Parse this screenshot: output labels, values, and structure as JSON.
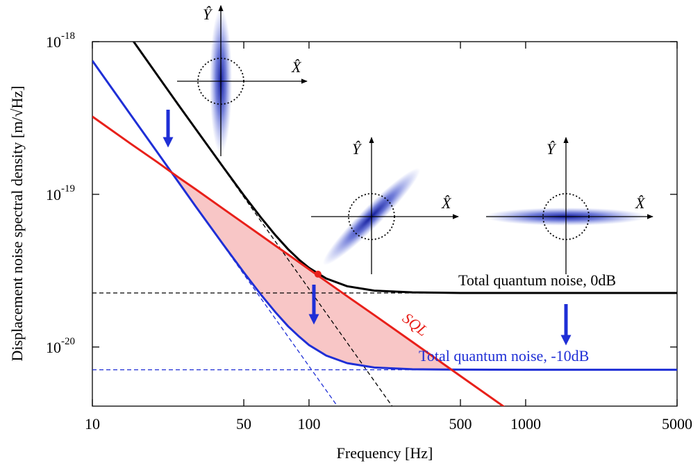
{
  "chart_data": {
    "type": "line",
    "xlabel": "Frequency [Hz]",
    "ylabel": "Displacement noise spectral density [m/√Hz]",
    "log_x": true,
    "log_y": true,
    "xlim": [
      10,
      5000
    ],
    "ylim": [
      4.1e-21,
      1e-18
    ],
    "xticks": [
      10,
      50,
      100,
      500,
      1000,
      5000
    ],
    "yticks": [
      {
        "value": 1e-18,
        "label": "10-18"
      },
      {
        "value": 1e-19,
        "label": "10-19"
      },
      {
        "value": 1e-20,
        "label": "10-20"
      }
    ],
    "series": [
      {
        "name": "Total quantum noise, 0dB",
        "color": "#000000",
        "style": "solid",
        "x": [
          15,
          20,
          25,
          30,
          40,
          50,
          60,
          70,
          80,
          90,
          100,
          120,
          150,
          200,
          300,
          500,
          1000,
          2000,
          5000
        ],
        "values": [
          1.07e-18,
          6e-19,
          3.84e-19,
          2.68e-19,
          1.52e-19,
          9.86e-20,
          7.04e-20,
          5.4e-20,
          4.38e-20,
          3.73e-20,
          3.3e-20,
          2.81e-20,
          2.5e-20,
          2.34e-20,
          2.28e-20,
          2.26e-20,
          2.26e-20,
          2.26e-20,
          2.26e-20
        ]
      },
      {
        "color": "#000000",
        "style": "dashed",
        "x": [
          15,
          250
        ],
        "values": [
          1.07e-18,
          3.84e-21
        ]
      },
      {
        "color": "#000000",
        "style": "dashed",
        "x": [
          10,
          5000
        ],
        "values": [
          2.26e-20,
          2.26e-20
        ]
      },
      {
        "name": "Total quantum noise, -10dB",
        "color": "#1f2fd6",
        "style": "solid",
        "x": [
          10,
          15,
          20,
          25,
          30,
          40,
          50,
          60,
          70,
          80,
          90,
          100,
          120,
          150,
          200,
          300,
          500,
          1000,
          2000,
          5000
        ],
        "values": [
          7.5e-19,
          3.33e-19,
          1.875e-19,
          1.2e-19,
          8.33e-20,
          4.74e-20,
          3.08e-20,
          2.2e-20,
          1.69e-20,
          1.37e-20,
          1.17e-20,
          1.03e-20,
          8.8e-21,
          7.84e-21,
          7.34e-21,
          7.15e-21,
          7.11e-21,
          7.1e-21,
          7.1e-21,
          7.1e-21
        ]
      },
      {
        "color": "#1f2fd6",
        "style": "dashed",
        "x": [
          10,
          150
        ],
        "values": [
          7.5e-19,
          3.33e-21
        ]
      },
      {
        "color": "#1f2fd6",
        "style": "dashed",
        "x": [
          10,
          5000
        ],
        "values": [
          7.1e-21,
          7.1e-21
        ]
      },
      {
        "name": "SQL",
        "color": "#e8201a",
        "style": "solid",
        "x": [
          10,
          15,
          20,
          25,
          30,
          40,
          50,
          60,
          70,
          80,
          90,
          100,
          120,
          150,
          200,
          300,
          500,
          1000
        ],
        "values": [
          3.23e-19,
          2.15e-19,
          1.62e-19,
          1.29e-19,
          1.08e-19,
          8.08e-20,
          6.46e-20,
          5.38e-20,
          4.61e-20,
          4.04e-20,
          3.59e-20,
          3.23e-20,
          2.69e-20,
          2.15e-20,
          1.62e-20,
          1.08e-20,
          6.46e-21,
          3.23e-21
        ]
      }
    ],
    "fill_color": "#f8c6c6",
    "marker": {
      "x": 110,
      "y": 3e-20,
      "color": "#e8201a"
    },
    "insets": [
      {
        "x_label": "X̂",
        "y_label": "Ŷ"
      },
      {
        "x_label": "X̂",
        "y_label": "Ŷ"
      },
      {
        "x_label": "X̂",
        "y_label": "Ŷ"
      }
    ]
  }
}
